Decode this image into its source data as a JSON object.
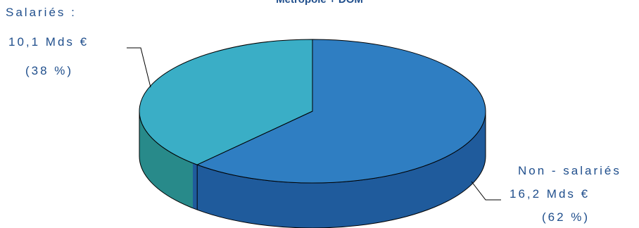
{
  "chart_data": {
    "type": "pie",
    "title": "Métropole + DOM",
    "categories": [
      "Non-salariés",
      "Salariés"
    ],
    "values": [
      16.2,
      10.1
    ],
    "percentages": [
      62,
      38
    ],
    "labels": [
      {
        "name": "Non - salariés",
        "amount": "16,2  Mds  €",
        "share": "(62 %)"
      },
      {
        "name": "Salariés :",
        "amount": "10,1  Mds  €",
        "share": "(38 %)"
      }
    ],
    "colors": {
      "non_salaries_top": "#2f7ec2",
      "non_salaries_side": "#1f5b9c",
      "salaries_top": "#3aaec6",
      "salaries_side": "#288a8a"
    },
    "legend": "none",
    "grid": false,
    "style": "3d-pie"
  }
}
